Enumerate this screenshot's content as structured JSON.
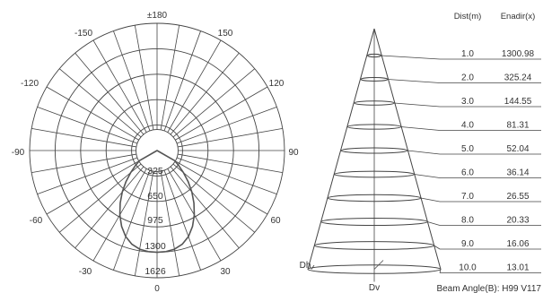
{
  "colors": {
    "grid": "#444444",
    "curve": "#555555",
    "text": "#333333",
    "background": "#ffffff"
  },
  "chart_data": [
    {
      "type": "polar",
      "angle_labels": {
        "top": "±180",
        "upper_left": "-150",
        "upper_right": "150",
        "mid_upper_left": "-120",
        "mid_upper_right": "120",
        "left": "-90",
        "right": "90",
        "lower_left": "-60",
        "lower_right": "60",
        "bottom_left": "-30",
        "bottom_right": "30",
        "bottom": "0"
      },
      "ring_labels": [
        "325",
        "650",
        "975",
        "1300",
        "1626"
      ],
      "rmax": 1626,
      "grid": true,
      "curve_angles_deg": [
        -60,
        -55,
        -50,
        -45,
        -40,
        -35,
        -30,
        -25,
        -20,
        -15,
        -10,
        -5,
        0,
        5,
        10,
        15,
        20,
        25,
        30,
        35,
        40,
        45,
        50,
        55,
        60
      ],
      "curve_values": [
        260,
        340,
        440,
        560,
        690,
        820,
        950,
        1070,
        1170,
        1240,
        1280,
        1296,
        1300,
        1296,
        1280,
        1240,
        1170,
        1070,
        950,
        820,
        690,
        560,
        440,
        340,
        260
      ]
    },
    {
      "type": "table",
      "headers": [
        "Dist(m)",
        "Enadir(x)"
      ],
      "distances": [
        "1.0",
        "2.0",
        "3.0",
        "4.0",
        "5.0",
        "6.0",
        "7.0",
        "8.0",
        "9.0",
        "10.0"
      ],
      "illuminance": [
        "1300.98",
        "325.24",
        "144.55",
        "81.31",
        "52.04",
        "36.14",
        "26.55",
        "20.33",
        "16.06",
        "13.01"
      ],
      "cone_labels": {
        "horizontal": "Dh",
        "vertical": "Dv"
      },
      "beam_angle_text": "Beam Angle(B): H99 V117"
    }
  ]
}
